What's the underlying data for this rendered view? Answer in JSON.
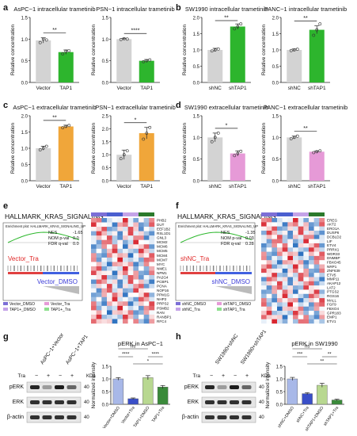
{
  "panel_letters": [
    "a",
    "b",
    "c",
    "d",
    "e",
    "f",
    "g",
    "h"
  ],
  "colors": {
    "grey": "#d3d3d3",
    "green": "#2db52d",
    "green_light": "#8ee08e",
    "orange": "#f0a63a",
    "pink": "#e69ad7",
    "purple": "#7c6fd6",
    "violet": "#c4a3e8",
    "blue": "#4a5fd0",
    "dark_green": "#2b7a2b",
    "heat_red": "#d7191c",
    "heat_blue": "#2c7bb6",
    "heat_white": "#ffffff"
  },
  "chart_data": [
    {
      "id": "a1",
      "type": "bar",
      "title": "AsPC−1 intracellular trametinib",
      "ylabel": "Relative concentration",
      "categories": [
        "Vector",
        "TAP1"
      ],
      "values": [
        0.97,
        0.7
      ],
      "errors": [
        0.06,
        0.05
      ],
      "ylim": [
        0,
        1.5
      ],
      "yticks": [
        "0.0",
        "0.5",
        "1.0",
        "1.5"
      ],
      "significance": "**",
      "points": [
        [
          0.92,
          1.0,
          0.98
        ],
        [
          0.66,
          0.72,
          0.73
        ]
      ]
    },
    {
      "id": "a2",
      "type": "bar",
      "title": "PSN−1 intracellular trametinib",
      "ylabel": "Relative concentration",
      "categories": [
        "Vector",
        "TAP1"
      ],
      "values": [
        1.0,
        0.5
      ],
      "errors": [
        0.02,
        0.03
      ],
      "ylim": [
        0,
        1.5
      ],
      "yticks": [
        "0.0",
        "0.5",
        "1.0",
        "1.5"
      ],
      "significance": "****",
      "points": [
        [
          0.99,
          1.01,
          1.0
        ],
        [
          0.48,
          0.5,
          0.52
        ]
      ]
    },
    {
      "id": "b1",
      "type": "bar",
      "title": "SW1990 intracellular trametinib",
      "ylabel": "Relative concentration",
      "categories": [
        "shNC",
        "shTAP1"
      ],
      "values": [
        1.0,
        1.72
      ],
      "errors": [
        0.05,
        0.08
      ],
      "ylim": [
        0,
        2.0
      ],
      "yticks": [
        "0.0",
        "0.5",
        "1.0",
        "1.5",
        "2.0"
      ],
      "significance": "**",
      "points": [
        [
          0.97,
          1.0,
          1.03
        ],
        [
          1.65,
          1.72,
          1.8
        ]
      ]
    },
    {
      "id": "b2",
      "type": "bar",
      "title": "PANC−1 intracellular trametinib",
      "ylabel": "Relative concentration",
      "categories": [
        "shNC",
        "shTAP1"
      ],
      "values": [
        1.0,
        1.62
      ],
      "errors": [
        0.03,
        0.12
      ],
      "ylim": [
        0,
        2.0
      ],
      "yticks": [
        "0.0",
        "0.5",
        "1.0",
        "1.5",
        "2.0"
      ],
      "significance": "**",
      "points": [
        [
          0.98,
          1.0,
          1.02
        ],
        [
          1.45,
          1.62,
          1.8
        ]
      ]
    },
    {
      "id": "c1",
      "type": "bar",
      "title": "AsPC−1 extracellular trametinib",
      "ylabel": "Relative concentration",
      "categories": [
        "Vector",
        "TAP1"
      ],
      "values": [
        1.0,
        1.67
      ],
      "errors": [
        0.06,
        0.04
      ],
      "ylim": [
        0,
        2.0
      ],
      "yticks": [
        "0.0",
        "0.5",
        "1.0",
        "1.5",
        "2.0"
      ],
      "significance": "**",
      "points": [
        [
          0.95,
          1.0,
          1.06
        ],
        [
          1.63,
          1.67,
          1.7
        ]
      ]
    },
    {
      "id": "c2",
      "type": "bar",
      "title": "PSN−1 extracellular trametinib",
      "ylabel": "Relative concentration",
      "categories": [
        "Vector",
        "TAP1"
      ],
      "values": [
        1.0,
        1.83
      ],
      "errors": [
        0.18,
        0.22
      ],
      "ylim": [
        0,
        2.5
      ],
      "yticks": [
        "0.0",
        "0.5",
        "1.0",
        "1.5",
        "2.0",
        "2.5"
      ],
      "significance": "*",
      "points": [
        [
          0.85,
          1.0,
          1.15
        ],
        [
          1.6,
          1.83,
          2.05
        ]
      ]
    },
    {
      "id": "d1",
      "type": "bar",
      "title": "SW1990 extracellular trametinib",
      "ylabel": "Relative concentration",
      "categories": [
        "shNC",
        "shTAP1"
      ],
      "values": [
        1.0,
        0.63
      ],
      "errors": [
        0.1,
        0.06
      ],
      "ylim": [
        0,
        1.5
      ],
      "yticks": [
        "0.0",
        "0.5",
        "1.0",
        "1.5"
      ],
      "significance": "*",
      "points": [
        [
          0.9,
          1.0,
          1.1
        ],
        [
          0.58,
          0.63,
          0.68
        ]
      ]
    },
    {
      "id": "d2",
      "type": "bar",
      "title": "PANC−1 extracellular trametinib",
      "ylabel": "Relative concentration",
      "categories": [
        "shNC",
        "shTAP1"
      ],
      "values": [
        1.0,
        0.67
      ],
      "errors": [
        0.03,
        0.02
      ],
      "ylim": [
        0,
        1.5
      ],
      "yticks": [
        "0.0",
        "0.5",
        "1.0",
        "1.5"
      ],
      "significance": "**",
      "points": [
        [
          0.97,
          1.0,
          1.03
        ],
        [
          0.65,
          0.67,
          0.69
        ]
      ]
    },
    {
      "id": "g",
      "type": "bar",
      "title": "pERK in AsPC−1",
      "ylabel": "Normalized intensity",
      "categories": [
        "Vector+DMSO",
        "Vector+Tra",
        "TAP1+DMSO",
        "TAP1+Tra"
      ],
      "values": [
        1.0,
        0.22,
        1.05,
        0.68
      ],
      "errors": [
        0.05,
        0.03,
        0.08,
        0.06
      ],
      "ylim": [
        0,
        1.5
      ],
      "yticks": [
        "0.0",
        "0.5",
        "1.0",
        "1.5"
      ],
      "significance_labels": [
        "ns",
        "****",
        "****",
        "*"
      ]
    },
    {
      "id": "h",
      "type": "bar",
      "title": "pERK in SW1990",
      "ylabel": "Normalized intensity",
      "categories": [
        "shNC+DMSO",
        "shNC+Tra",
        "shTAP1+DMSO",
        "shTAP1+Tra"
      ],
      "values": [
        1.0,
        0.42,
        0.75,
        0.17
      ],
      "errors": [
        0.06,
        0.04,
        0.08,
        0.03
      ],
      "ylim": [
        0,
        1.5
      ],
      "yticks": [
        "0.0",
        "0.5",
        "1.0",
        "1.5"
      ],
      "significance_labels": [
        "ns",
        "***",
        "**",
        "**"
      ]
    },
    {
      "id": "e_gsea",
      "type": "line",
      "title": "HALLMARK_KRAS_SIGNALING",
      "subtitle": "Enrichment plot: HALLMARK_KRAS_SIGNALING_UP",
      "stats": [
        {
          "label": "NES",
          "value": "-1.65"
        },
        {
          "label": "NOM p-val",
          "value": "0.0"
        },
        {
          "label": "FDR q-val",
          "value": "0.0"
        }
      ],
      "high_group": "Vector_Tra",
      "low_group": "Vector_DMSO",
      "legend": [
        "Vector_DMSO",
        "Vector_Tra",
        "TAP1+_DMSO",
        "TAP1+_Tra"
      ]
    },
    {
      "id": "f_gsea",
      "type": "line",
      "title": "HALLMARK_KRAS_SIGNALING",
      "subtitle": "Enrichment plot: HALLMARK_KRAS_SIGNALING_UP",
      "stats": [
        {
          "label": "NES",
          "value": "-1.35"
        },
        {
          "label": "NOM p-val",
          "value": "0.03"
        },
        {
          "label": "FDR q-val",
          "value": "0.28"
        }
      ],
      "high_group": "shNC_Tra",
      "low_group": "shNC_DMSO",
      "legend": [
        "shNC_DMSO",
        "shTAP1_DMSO",
        "shNC_Tra",
        "shTAP1_Tra"
      ]
    },
    {
      "id": "e_heat",
      "type": "heatmap",
      "genes": [
        "PHB2",
        "DUT",
        "EEF1B2",
        "RSL1D1",
        "GNL3",
        "MCM2",
        "MCM6",
        "MCM5",
        "MCM4",
        "MCM7",
        "MYC",
        "NME1",
        "NPM1",
        "PA2G4",
        "PCBP1",
        "PCNA",
        "NOP16",
        "PPM1G",
        "NHP2",
        "PRPS2",
        "PSMB2",
        "RAN",
        "RANBP1",
        "RFC4"
      ]
    },
    {
      "id": "f_heat",
      "type": "heatmap",
      "genes": [
        "EREG",
        "AKT2",
        "ERO1A",
        "DUSP6",
        "DCBLD2",
        "LIF",
        "ETV4",
        "PRRX1",
        "WDR33",
        "DNMBP",
        "FBXO45",
        "NRP1",
        "ZNF639",
        "ETV5",
        "MMP11",
        "AKAP12",
        "LAT2",
        "PTGS2",
        "RGS16",
        "MALL",
        "FGF9",
        "FBXO4",
        "GPR183",
        "EMP1",
        "ETV1"
      ]
    }
  ],
  "blots": {
    "g": {
      "columns": [
        "AsPC−1+Vector",
        "AsPC−1+TAP1"
      ],
      "rows": [
        "pERK",
        "ERK",
        "β-actin"
      ],
      "tra_label": "Tra",
      "tra_signs": [
        "−",
        "+",
        "−",
        "+"
      ],
      "kda_label": "KDa",
      "mw": [
        "40",
        "40",
        "40"
      ]
    },
    "h": {
      "columns": [
        "SW1990+shNC",
        "SW1990+shTAP1"
      ],
      "rows": [
        "pERK",
        "ERK",
        "β-actin"
      ],
      "tra_label": "Tra",
      "tra_signs": [
        "−",
        "+",
        "−",
        "+"
      ],
      "kda_label": "KDa",
      "mw": [
        "40",
        "40",
        "40"
      ]
    }
  }
}
